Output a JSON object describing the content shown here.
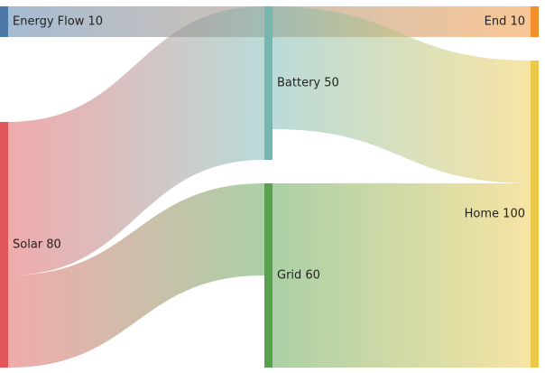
{
  "chart_data": {
    "type": "sankey",
    "nodes": [
      {
        "id": "energy_flow",
        "name": "Energy Flow",
        "value": 10,
        "label": "Energy Flow 10",
        "color": "#4e79a7",
        "column": 0
      },
      {
        "id": "solar",
        "name": "Solar",
        "value": 80,
        "label": "Solar 80",
        "color": "#e15759",
        "column": 0
      },
      {
        "id": "battery",
        "name": "Battery",
        "value": 50,
        "label": "Battery 50",
        "color": "#76b7b2",
        "column": 1
      },
      {
        "id": "grid",
        "name": "Grid",
        "value": 60,
        "label": "Grid 60",
        "color": "#59a14f",
        "column": 1
      },
      {
        "id": "end",
        "name": "End",
        "value": 10,
        "label": "End 10",
        "color": "#f28e2c",
        "column": 2
      },
      {
        "id": "home",
        "name": "Home",
        "value": 100,
        "label": "Home 100",
        "color": "#edc949",
        "column": 2
      }
    ],
    "links": [
      {
        "source": "energy_flow",
        "target": "end",
        "value": 10
      },
      {
        "source": "solar",
        "target": "battery",
        "value": 50
      },
      {
        "source": "solar",
        "target": "grid",
        "value": 30
      },
      {
        "source": "battery",
        "target": "home",
        "value": 40
      },
      {
        "source": "grid",
        "target": "home",
        "value": 60
      }
    ]
  }
}
